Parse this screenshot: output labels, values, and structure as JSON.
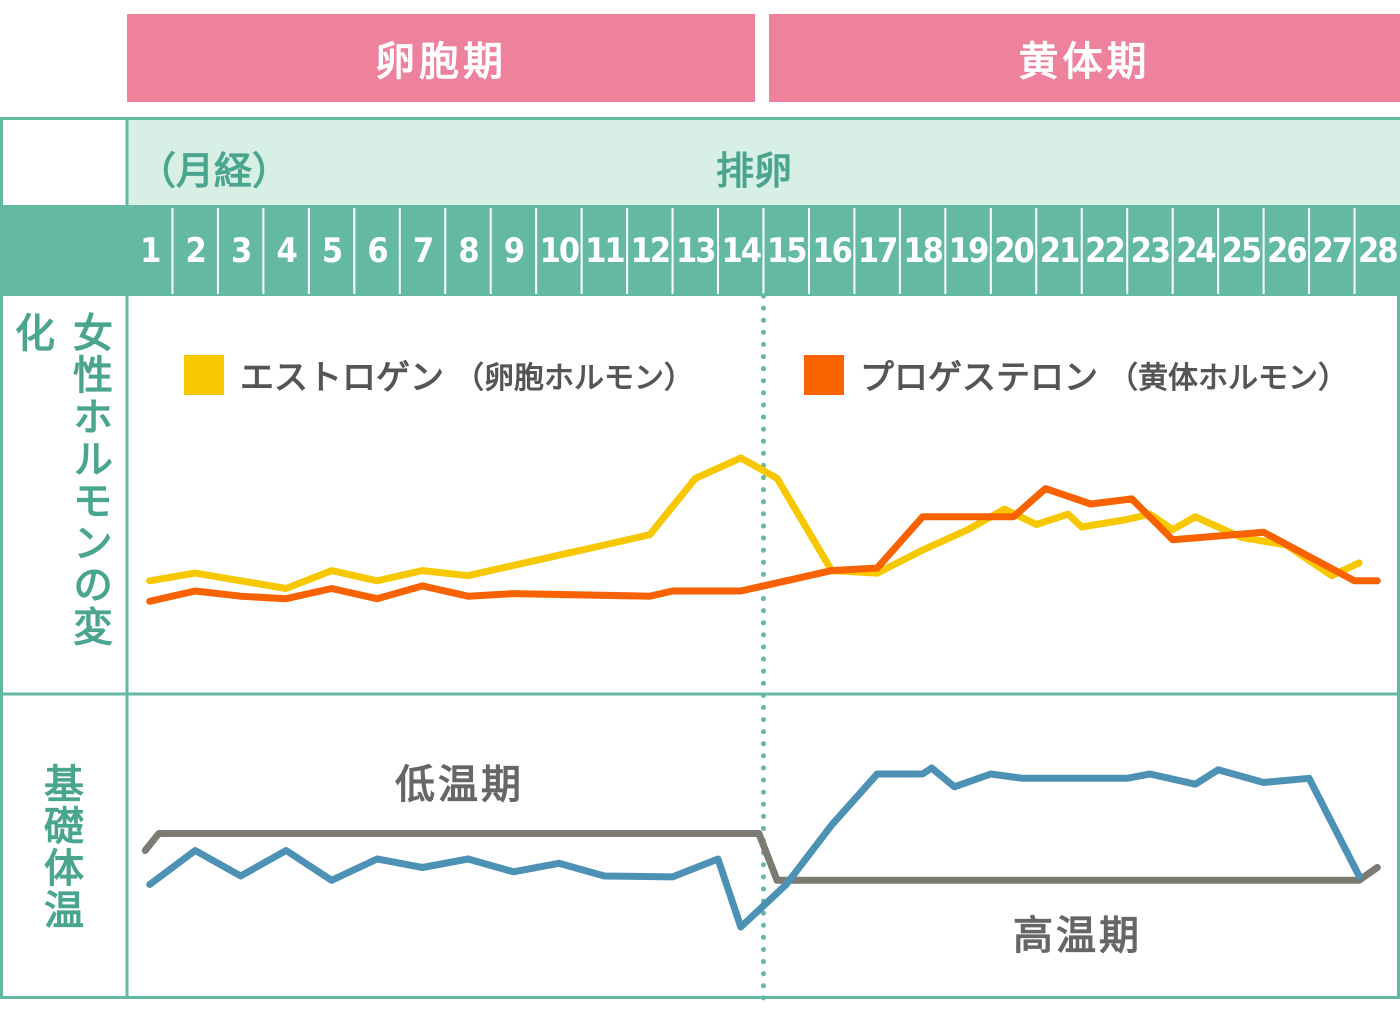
{
  "phases": {
    "follicular": "卵胞期",
    "luteal": "黄体期"
  },
  "header": {
    "menstruation": "（月経）",
    "ovulation": "排卵"
  },
  "side_titles": {
    "hormones": "女性ホルモンの変化",
    "bbt": "基礎体温"
  },
  "bbt_labels": {
    "low": "低温期",
    "high": "高温期"
  },
  "colors": {
    "estrogen": "#f7c800",
    "progesterone": "#f96200",
    "bbt": "#4d92b5",
    "phase_band": "#7d7a74",
    "pink": "#ee829c",
    "teal": "#64b9a3",
    "teal_light": "#d8efe5"
  },
  "chart_data": {
    "type": "line",
    "x": [
      1,
      2,
      3,
      4,
      5,
      6,
      7,
      8,
      9,
      10,
      11,
      12,
      13,
      14,
      15,
      16,
      17,
      18,
      19,
      20,
      21,
      22,
      23,
      24,
      25,
      26,
      27,
      28
    ],
    "x_tick_labels": [
      "1",
      "2",
      "3",
      "4",
      "5",
      "6",
      "7",
      "8",
      "9",
      "10",
      "11",
      "12",
      "13",
      "14",
      "15",
      "16",
      "17",
      "18",
      "19",
      "20",
      "21",
      "22",
      "23",
      "24",
      "25",
      "26",
      "27",
      "28"
    ],
    "ovulation_day": 14.5,
    "hormones": {
      "series": [
        {
          "name": "エストロゲン",
          "subname": "（卵胞ホルモン）",
          "color_key": "estrogen",
          "points": [
            [
              1,
              20
            ],
            [
              2,
              23
            ],
            [
              3,
              20
            ],
            [
              4,
              17
            ],
            [
              5,
              24
            ],
            [
              6,
              20
            ],
            [
              7,
              24
            ],
            [
              8,
              22
            ],
            [
              9,
              26
            ],
            [
              10,
              30
            ],
            [
              11,
              34
            ],
            [
              12,
              38
            ],
            [
              13,
              60
            ],
            [
              14,
              68
            ],
            [
              14.8,
              60
            ],
            [
              16,
              24
            ],
            [
              17,
              23
            ],
            [
              18,
              32
            ],
            [
              19,
              40
            ],
            [
              19.8,
              48
            ],
            [
              20.5,
              42
            ],
            [
              21.2,
              46
            ],
            [
              21.5,
              41
            ],
            [
              22.5,
              44
            ],
            [
              23,
              46
            ],
            [
              23.5,
              40
            ],
            [
              24,
              45
            ],
            [
              25,
              37
            ],
            [
              26,
              34
            ],
            [
              27,
              22
            ],
            [
              27.6,
              27
            ]
          ]
        },
        {
          "name": "プロゲステロン",
          "subname": "（黄体ホルモン）",
          "color_key": "progesterone",
          "points": [
            [
              1,
              12
            ],
            [
              2,
              16
            ],
            [
              3,
              14
            ],
            [
              4,
              13
            ],
            [
              5,
              17
            ],
            [
              6,
              13
            ],
            [
              7,
              18
            ],
            [
              8,
              14
            ],
            [
              9,
              15
            ],
            [
              12,
              14
            ],
            [
              12.5,
              16
            ],
            [
              14,
              16
            ],
            [
              15,
              20
            ],
            [
              16,
              24
            ],
            [
              17,
              25
            ],
            [
              18,
              45
            ],
            [
              20,
              45
            ],
            [
              20.7,
              56
            ],
            [
              21.7,
              50
            ],
            [
              22.6,
              52
            ],
            [
              23.5,
              36
            ],
            [
              25.5,
              39
            ],
            [
              27.5,
              20
            ],
            [
              28,
              20
            ]
          ]
        }
      ]
    },
    "bbt": {
      "series": [
        {
          "name": "",
          "color_key": "bbt",
          "points": [
            [
              1,
              3
            ],
            [
              2,
              7
            ],
            [
              3,
              4
            ],
            [
              4,
              7
            ],
            [
              5,
              3.5
            ],
            [
              6,
              6
            ],
            [
              7,
              5
            ],
            [
              8,
              6
            ],
            [
              9,
              4.5
            ],
            [
              10,
              5.5
            ],
            [
              11,
              4
            ],
            [
              12.5,
              3.9
            ],
            [
              13.5,
              6
            ],
            [
              14,
              -2
            ],
            [
              15,
              3
            ],
            [
              16,
              10
            ],
            [
              17,
              16
            ],
            [
              18,
              16
            ],
            [
              18.2,
              16.7
            ],
            [
              18.7,
              14.5
            ],
            [
              19.5,
              16
            ],
            [
              20.2,
              15.5
            ],
            [
              22.5,
              15.5
            ],
            [
              23,
              16
            ],
            [
              24,
              14.8
            ],
            [
              24.5,
              16.5
            ],
            [
              25.5,
              15
            ],
            [
              26.5,
              15.5
            ],
            [
              27.6,
              4
            ]
          ]
        },
        {
          "name": "",
          "color_key": "phase_band",
          "points": [
            [
              0.9,
              7
            ],
            [
              1.2,
              9
            ],
            [
              14.4,
              9
            ],
            [
              14.8,
              3.5
            ],
            [
              27.6,
              3.5
            ],
            [
              28,
              5
            ]
          ]
        }
      ]
    }
  }
}
